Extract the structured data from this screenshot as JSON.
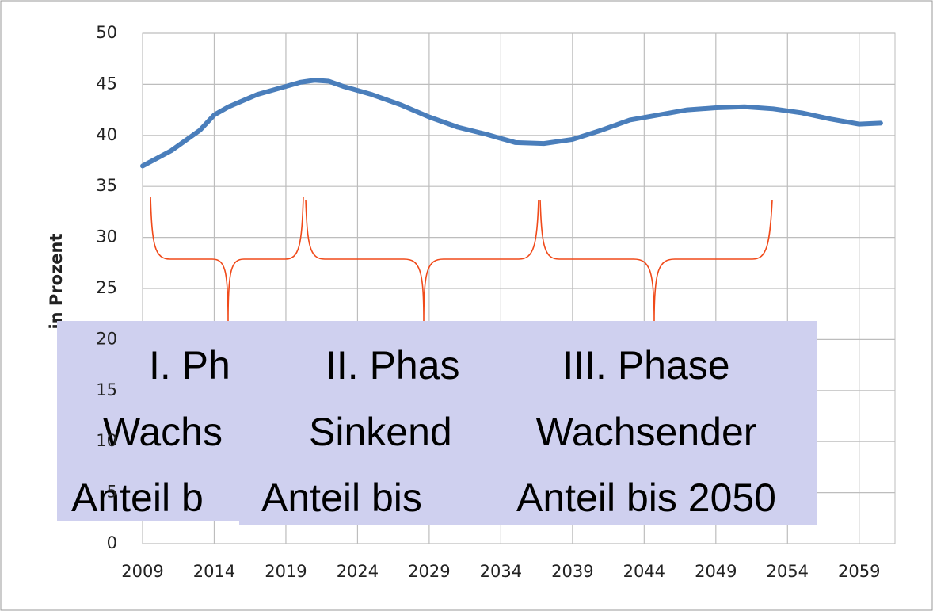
{
  "chart_data": {
    "type": "line",
    "y_label": "in Prozent",
    "x": [
      2009,
      2011,
      2013,
      2014,
      2015,
      2017,
      2019,
      2020,
      2021,
      2022,
      2023,
      2025,
      2027,
      2029,
      2031,
      2033,
      2035,
      2037,
      2039,
      2041,
      2043,
      2045,
      2047,
      2049,
      2051,
      2053,
      2055,
      2057,
      2059,
      2060.5
    ],
    "series": [
      {
        "color": "#4a7ebb",
        "values": [
          37,
          38.5,
          40.5,
          42,
          42.8,
          44,
          44.8,
          45.2,
          45.4,
          45.3,
          44.8,
          44,
          43,
          41.8,
          40.8,
          40.1,
          39.3,
          39.2,
          39.6,
          40.5,
          41.5,
          42,
          42.5,
          42.7,
          42.8,
          42.6,
          42.2,
          41.6,
          41.1,
          41.2
        ]
      }
    ],
    "xlim": [
      2009,
      2061.5
    ],
    "xticks": [
      2009,
      2014,
      2019,
      2024,
      2029,
      2034,
      2039,
      2044,
      2049,
      2054,
      2059
    ],
    "ylim": [
      0,
      50
    ],
    "yticks": [
      0,
      5,
      10,
      15,
      20,
      25,
      30,
      35,
      40,
      45,
      50
    ],
    "grid": true
  },
  "boxes": [
    [
      "I. Ph",
      "Wachs",
      "Anteil b"
    ],
    [
      "II. Phas",
      "Sinkend",
      "Anteil bis"
    ],
    [
      "III. Phase",
      "Wachsender",
      "Anteil bis 2050"
    ]
  ]
}
